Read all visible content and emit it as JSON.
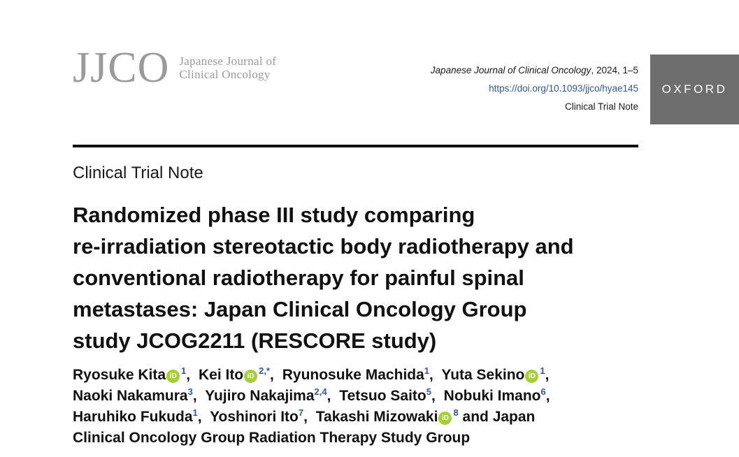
{
  "journal": {
    "logo_mark": "JJCO",
    "logo_sub_line1": "Japanese Journal of",
    "logo_sub_line2": "Clinical Oncology",
    "citation_name": "Japanese Journal of Clinical Oncology",
    "citation_rest": ", 2024, 1–5",
    "doi": "https://doi.org/10.1093/jjco/hyae145",
    "article_type_small": "Clinical Trial Note",
    "publisher": "OXFORD"
  },
  "article": {
    "type": "Clinical Trial Note",
    "title_lines": [
      "Randomized phase III study comparing",
      "re-irradiation stereotactic body radiotherapy and",
      "conventional radiotherapy for painful spinal",
      "metastases: Japan Clinical Oncology Group",
      "study JCOG2211 (RESCORE study)"
    ]
  },
  "authors": {
    "a1": {
      "name": "Ryosuke Kita",
      "aff": "1",
      "orcid": "iD"
    },
    "a2": {
      "name": "Kei Ito",
      "aff": "2,*",
      "orcid": "iD"
    },
    "a3": {
      "name": "Ryunosuke Machida",
      "aff": "1"
    },
    "a4": {
      "name": "Yuta Sekino",
      "aff": "1",
      "orcid": "iD"
    },
    "a5": {
      "name": "Naoki Nakamura",
      "aff": "3"
    },
    "a6": {
      "name": "Yujiro Nakajima",
      "aff": "2,4"
    },
    "a7": {
      "name": "Tetsuo Saito",
      "aff": "5"
    },
    "a8": {
      "name": "Nobuki Imano",
      "aff": "6"
    },
    "a9": {
      "name": "Haruhiko Fukuda",
      "aff": "1"
    },
    "a10": {
      "name": "Yoshinori Ito",
      "aff": "7"
    },
    "a11": {
      "name": "Takashi Mizowaki",
      "aff": "8",
      "orcid": "iD"
    },
    "tail_1": " and Japan",
    "tail_2": "Clinical Oncology Group Radiation Therapy Study Group"
  },
  "colors": {
    "logo_gray": "#9a9a9a",
    "link_blue": "#2d5a9b",
    "orcid_green": "#a6ce39",
    "oxford_bg": "#6e6e6e"
  }
}
